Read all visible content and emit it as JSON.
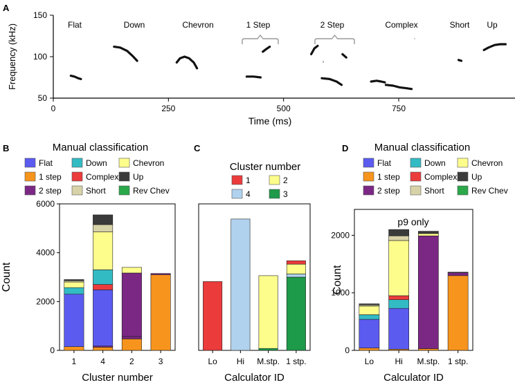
{
  "panels": {
    "A": {
      "letter": "A"
    },
    "B": {
      "letter": "B",
      "legend_title": "Manual classification"
    },
    "C": {
      "letter": "C",
      "legend_title": "Cluster number"
    },
    "D": {
      "letter": "D",
      "legend_title": "Manual classification",
      "annotation": "p9 only"
    }
  },
  "colors": {
    "Flat": "#5b5bf0",
    "Down": "#33bbc4",
    "Chevron": "#fdfd8c",
    "1 step": "#f7941d",
    "Complex": "#eb3b3b",
    "Up": "#3a3a3a",
    "2 step": "#7b2784",
    "Short": "#d8d2a8",
    "Rev Chev": "#2aa84a",
    "cluster_1": "#eb3b3b",
    "cluster_2": "#fdfd8c",
    "cluster_3": "#1d9a4a",
    "cluster_4": "#b0d2ee"
  },
  "chart_data": [
    {
      "panel": "A",
      "type": "scatter",
      "title": "",
      "xlabel": "Time (ms)",
      "ylabel": "Frequency (kHz)",
      "xlim": [
        0,
        1000
      ],
      "ylim": [
        50,
        150
      ],
      "xticks": [
        "0",
        "250",
        "500",
        "750"
      ],
      "yticks": [
        "50",
        "100",
        "150"
      ],
      "call_labels": [
        "Flat",
        "Down",
        "Chevron",
        "1 Step",
        "2 Step",
        "Complex",
        "Short",
        "Up"
      ],
      "calls": [
        {
          "name": "Flat",
          "points": [
            [
              38,
              77
            ],
            [
              46,
              76
            ],
            [
              54,
              74
            ],
            [
              60,
              73
            ]
          ]
        },
        {
          "name": "Down",
          "points": [
            [
              132,
              112
            ],
            [
              145,
              111
            ],
            [
              160,
              107
            ],
            [
              172,
              101
            ],
            [
              182,
              95
            ]
          ]
        },
        {
          "name": "Chevron",
          "points": [
            [
              268,
              93
            ],
            [
              275,
              98
            ],
            [
              285,
              100
            ],
            [
              295,
              98
            ],
            [
              305,
              93
            ],
            [
              312,
              86
            ]
          ]
        },
        {
          "name": "1 Step",
          "points": [
            [
              420,
              76
            ],
            [
              435,
              76
            ],
            [
              450,
              75
            ]
          ]
        },
        {
          "name": "1 Step",
          "points": [
            [
              455,
              106
            ],
            [
              462,
              109
            ],
            [
              470,
              112
            ]
          ]
        },
        {
          "name": "2 Step",
          "points": [
            [
              560,
              103
            ],
            [
              567,
              110
            ],
            [
              574,
              113
            ]
          ]
        },
        {
          "name": "2 Step",
          "points": [
            [
              583,
              74
            ],
            [
              600,
              73
            ],
            [
              615,
              70
            ],
            [
              626,
              66
            ]
          ]
        },
        {
          "name": "2 Step",
          "points": [
            [
              628,
              103
            ],
            [
              636,
              99
            ]
          ]
        },
        {
          "name": "Complex",
          "points": [
            [
              690,
              70
            ],
            [
              702,
              71
            ],
            [
              712,
              70
            ],
            [
              720,
              69
            ]
          ]
        },
        {
          "name": "Complex",
          "points": [
            [
              722,
              66
            ],
            [
              738,
              65
            ],
            [
              752,
              63
            ],
            [
              766,
              62
            ],
            [
              778,
              61
            ]
          ]
        },
        {
          "name": "Short",
          "points": [
            [
              880,
              96
            ],
            [
              886,
              95
            ]
          ]
        },
        {
          "name": "Up",
          "points": [
            [
              935,
              108
            ],
            [
              945,
              111
            ],
            [
              958,
              114
            ],
            [
              970,
              115
            ],
            [
              982,
              115
            ]
          ]
        }
      ]
    },
    {
      "panel": "B",
      "type": "bar",
      "stacked": true,
      "xlabel": "Cluster number",
      "ylabel": "Count",
      "ylim": [
        0,
        6000
      ],
      "yticks": [
        "0",
        "2000",
        "4000",
        "6000"
      ],
      "categories": [
        "1",
        "4",
        "2",
        "3"
      ],
      "series": [
        {
          "name": "1 step",
          "values": [
            150,
            130,
            470,
            3100
          ]
        },
        {
          "name": "2 step",
          "values": [
            0,
            50,
            100,
            0
          ]
        },
        {
          "name": "Flat",
          "values": [
            2150,
            2300,
            0,
            0
          ]
        },
        {
          "name": "Complex",
          "values": [
            0,
            220,
            0,
            0
          ]
        },
        {
          "name": "Down",
          "values": [
            270,
            600,
            0,
            0
          ]
        },
        {
          "name": "Chevron",
          "values": [
            230,
            1550,
            0,
            0
          ]
        },
        {
          "name": "2 step",
          "values": [
            0,
            0,
            2600,
            50
          ]
        },
        {
          "name": "Chevron",
          "values": [
            0,
            0,
            230,
            0
          ]
        },
        {
          "name": "Short",
          "values": [
            50,
            300,
            0,
            0
          ]
        },
        {
          "name": "Up",
          "values": [
            50,
            400,
            0,
            0
          ]
        }
      ],
      "totals": [
        2900,
        5550,
        3400,
        3150
      ],
      "legend": [
        "Flat",
        "Down",
        "Chevron",
        "1 step",
        "Complex",
        "Up",
        "2 step",
        "Short",
        "Rev Chev"
      ]
    },
    {
      "panel": "C",
      "type": "bar",
      "stacked": true,
      "xlabel": "Calculator ID",
      "ylabel": "",
      "ylim": [
        0,
        6000
      ],
      "categories": [
        "Lo",
        "Hi",
        "M.stp.",
        "1 stp."
      ],
      "series": [
        {
          "name": "3",
          "values": [
            0,
            0,
            80,
            3000
          ]
        },
        {
          "name": "1",
          "values": [
            2820,
            0,
            0,
            0
          ]
        },
        {
          "name": "4",
          "values": [
            0,
            5380,
            0,
            130
          ]
        },
        {
          "name": "2",
          "values": [
            0,
            0,
            2980,
            400
          ]
        },
        {
          "name": "1",
          "values": [
            0,
            0,
            0,
            140
          ]
        }
      ],
      "totals": [
        2820,
        5380,
        3060,
        3670
      ],
      "legend": [
        "1",
        "2",
        "4",
        "3"
      ]
    },
    {
      "panel": "D",
      "type": "bar",
      "stacked": true,
      "xlabel": "Calculator ID",
      "ylabel": "Count",
      "ylim": [
        0,
        2450
      ],
      "yticks": [
        "0",
        "1000",
        "2000"
      ],
      "categories": [
        "Lo",
        "Hi",
        "M.stp.",
        "1 stp."
      ],
      "series": [
        {
          "name": "1 step",
          "values": [
            40,
            20,
            30,
            1300
          ]
        },
        {
          "name": "Flat",
          "values": [
            500,
            710,
            0,
            0
          ]
        },
        {
          "name": "Down",
          "values": [
            80,
            150,
            0,
            0
          ]
        },
        {
          "name": "Complex",
          "values": [
            0,
            70,
            0,
            0
          ]
        },
        {
          "name": "2 step",
          "values": [
            0,
            0,
            1960,
            50
          ]
        },
        {
          "name": "Chevron",
          "values": [
            150,
            960,
            40,
            0
          ]
        },
        {
          "name": "Short",
          "values": [
            20,
            80,
            0,
            0
          ]
        },
        {
          "name": "Up",
          "values": [
            20,
            110,
            40,
            10
          ]
        }
      ],
      "totals": [
        810,
        2100,
        2070,
        1360
      ],
      "legend": [
        "Flat",
        "Down",
        "Chevron",
        "1 step",
        "Complex",
        "Up",
        "2 step",
        "Short",
        "Rev Chev"
      ]
    }
  ]
}
